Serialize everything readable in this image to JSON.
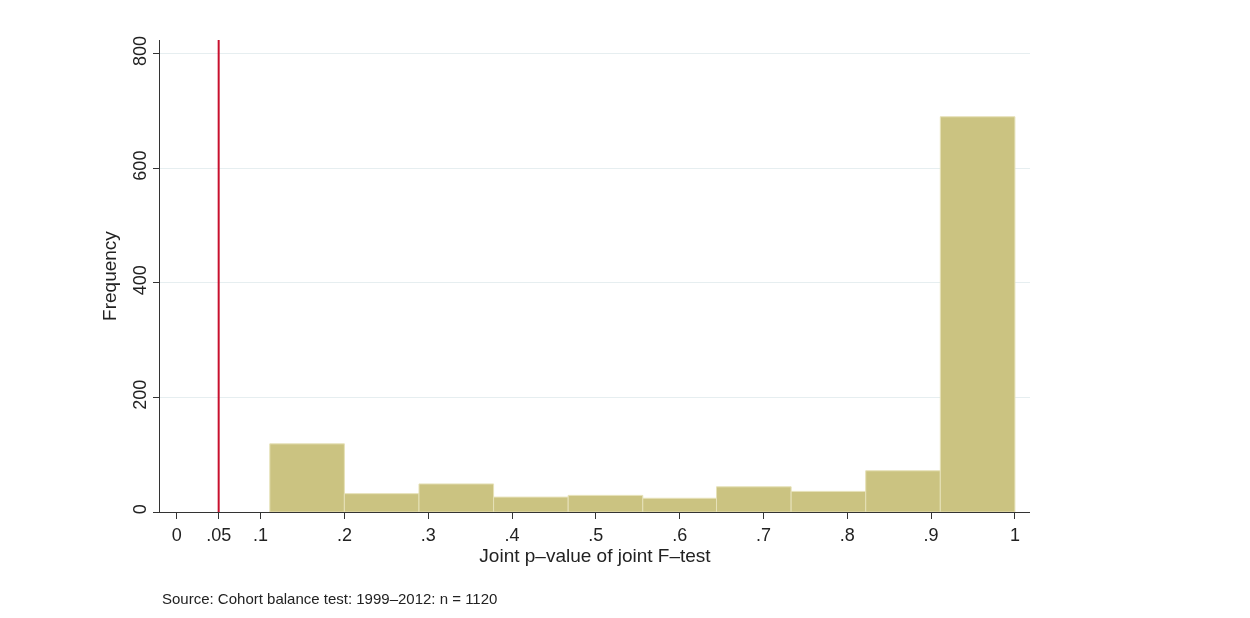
{
  "chart_data": {
    "type": "histogram",
    "xlabel": "Joint p–value of joint F–test",
    "ylabel": "Frequency",
    "bins": [
      0.111,
      0.2,
      0.289,
      0.378,
      0.467,
      0.556,
      0.644,
      0.733,
      0.822,
      0.911,
      1.0
    ],
    "values": [
      119,
      32,
      49,
      26,
      29,
      24,
      44,
      36,
      72,
      690
    ],
    "color": "#cbc381",
    "xlim": [
      -0.02,
      1.018
    ],
    "ylim": [
      0,
      824
    ],
    "xticks": [
      0,
      {
        "value": 0.05,
        "label": ".05"
      },
      {
        "value": 0.1,
        "label": ".1"
      },
      {
        "value": 0.2,
        "label": ".2"
      },
      {
        "value": 0.3,
        "label": ".3"
      },
      {
        "value": 0.4,
        "label": ".4"
      },
      {
        "value": 0.5,
        "label": ".5"
      },
      {
        "value": 0.6,
        "label": ".6"
      },
      {
        "value": 0.7,
        "label": ".7"
      },
      {
        "value": 0.8,
        "label": ".8"
      },
      {
        "value": 0.9,
        "label": ".9"
      },
      1
    ],
    "yticks": [
      0,
      200,
      400,
      600,
      800
    ],
    "grid": "y",
    "ref_lines": [
      {
        "axis": "x",
        "value": 0.05,
        "color": "#c8102e"
      }
    ],
    "annotations": [
      "Source: Cohort balance test: 1999–2012: n = 1120"
    ]
  }
}
